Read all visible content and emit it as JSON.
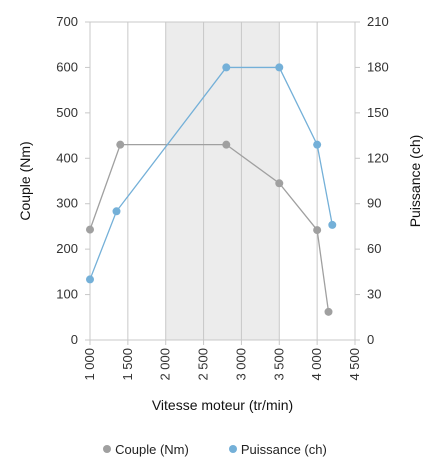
{
  "chart_data": {
    "type": "line",
    "xlabel": "Vitesse moteur (tr/min)",
    "ylabel": "Couple (Nm)",
    "y2label": "Puissance (ch)",
    "xlim": [
      1000,
      4500
    ],
    "ylim": [
      0,
      700
    ],
    "y2lim": [
      0,
      210
    ],
    "x_ticks": [
      "1 000",
      "1 500",
      "2 000",
      "2 500",
      "3 000",
      "3 500",
      "4 000",
      "4 500"
    ],
    "x_tick_values": [
      1000,
      1500,
      2000,
      2500,
      3000,
      3500,
      4000,
      4500
    ],
    "y_ticks": [
      0,
      100,
      200,
      300,
      400,
      500,
      600,
      700
    ],
    "y2_ticks": [
      0,
      30,
      60,
      90,
      120,
      150,
      180,
      210
    ],
    "shaded_range": [
      2000,
      3500
    ],
    "grid": "vertical",
    "legend_position": "bottom",
    "series": [
      {
        "name": "Couple (Nm)",
        "axis": "left",
        "color": "#a0a0a0",
        "points": [
          [
            1000,
            243
          ],
          [
            1400,
            430
          ],
          [
            2800,
            430
          ],
          [
            3500,
            345
          ],
          [
            4000,
            242
          ],
          [
            4150,
            62
          ]
        ]
      },
      {
        "name": "Puissance (ch)",
        "axis": "right",
        "color": "#74b0d8",
        "points": [
          [
            1000,
            40
          ],
          [
            1350,
            85
          ],
          [
            2800,
            180
          ],
          [
            3500,
            180
          ],
          [
            4000,
            129
          ],
          [
            4200,
            76
          ]
        ]
      }
    ]
  }
}
